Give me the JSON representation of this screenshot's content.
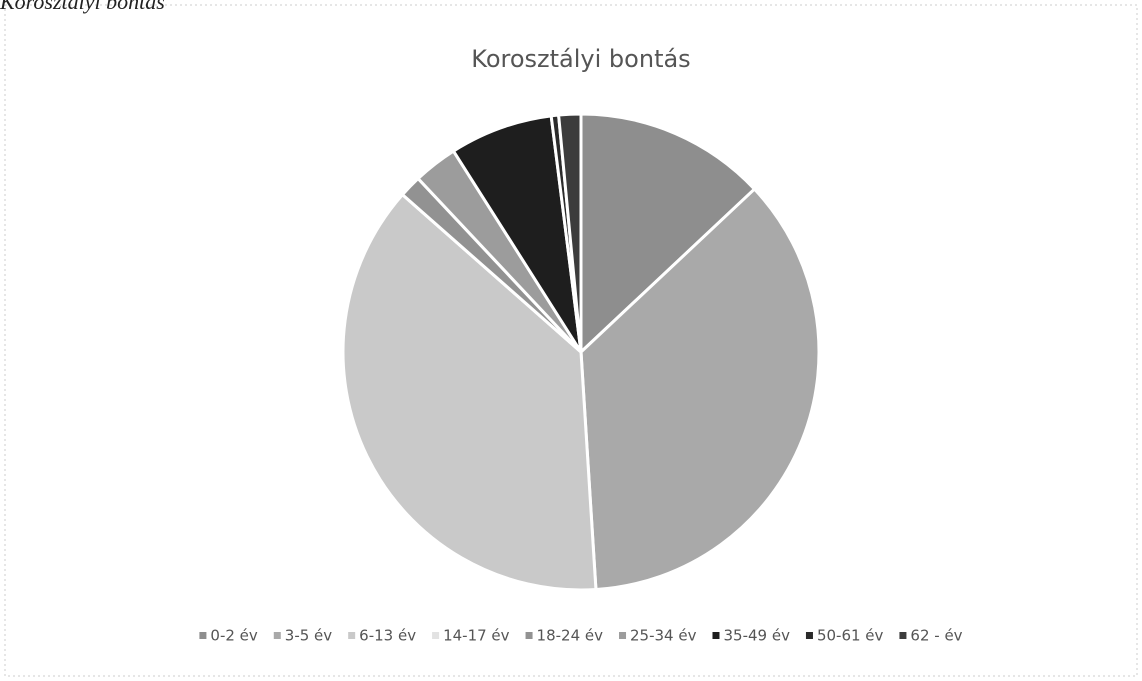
{
  "caption": "Korosztályi bontás",
  "chart_data": {
    "type": "pie",
    "title": "Korosztályi bontás",
    "categories": [
      "0-2 év",
      "3-5 év",
      "6-13 év",
      "14-17 év",
      "18-24 év",
      "25-34 év",
      "35-49 év",
      "50-61 év",
      "62 - év"
    ],
    "values": [
      13,
      36,
      37.5,
      0,
      1.5,
      3,
      7,
      0.5,
      1.5
    ],
    "colors": [
      "#8e8e8e",
      "#a9a9a9",
      "#c9c9c9",
      "#e2e2e2",
      "#929292",
      "#9c9c9c",
      "#1e1e1e",
      "#2b2b2b",
      "#3c3c3c"
    ],
    "legend": "bottom"
  }
}
